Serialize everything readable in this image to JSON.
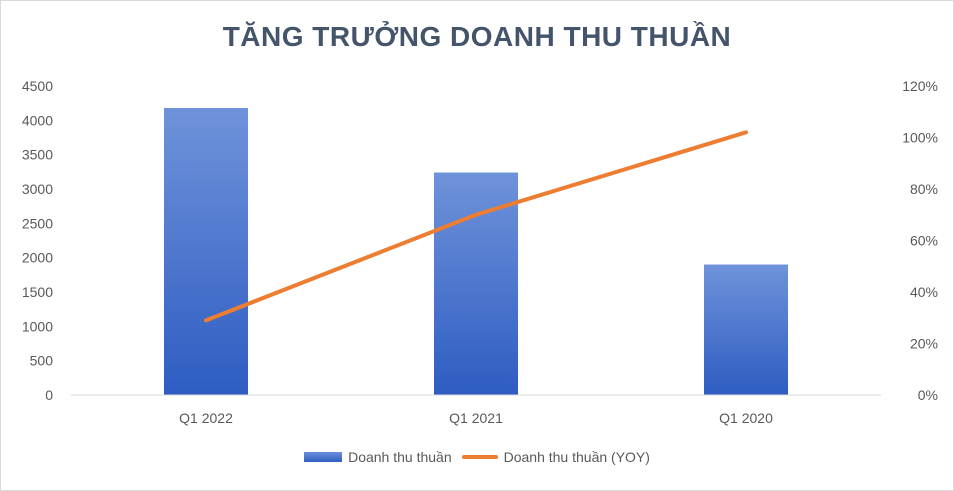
{
  "chart_data": {
    "type": "bar",
    "title": "TĂNG TRƯỞNG DOANH THU THUẦN",
    "categories": [
      "Q1 2022",
      "Q1 2021",
      "Q1 2020"
    ],
    "series": [
      {
        "name": "Doanh thu thuần",
        "type": "bar",
        "axis": "left",
        "values": [
          4180,
          3240,
          1900
        ]
      },
      {
        "name": "Doanh thu thuần (YOY)",
        "type": "line",
        "axis": "right",
        "values": [
          0.29,
          0.7,
          1.02
        ]
      }
    ],
    "y_left": {
      "min": 0,
      "max": 4500,
      "ticks": [
        "0",
        "500",
        "1000",
        "1500",
        "2000",
        "2500",
        "3000",
        "3500",
        "4000",
        "4500"
      ]
    },
    "y_right": {
      "min": 0,
      "max": 1.2,
      "ticks": [
        "0%",
        "20%",
        "40%",
        "60%",
        "80%",
        "100%",
        "120%"
      ]
    },
    "grid": false,
    "legend_position": "bottom",
    "colors": {
      "bar": "#4472c4",
      "line": "#ed7d31"
    }
  }
}
